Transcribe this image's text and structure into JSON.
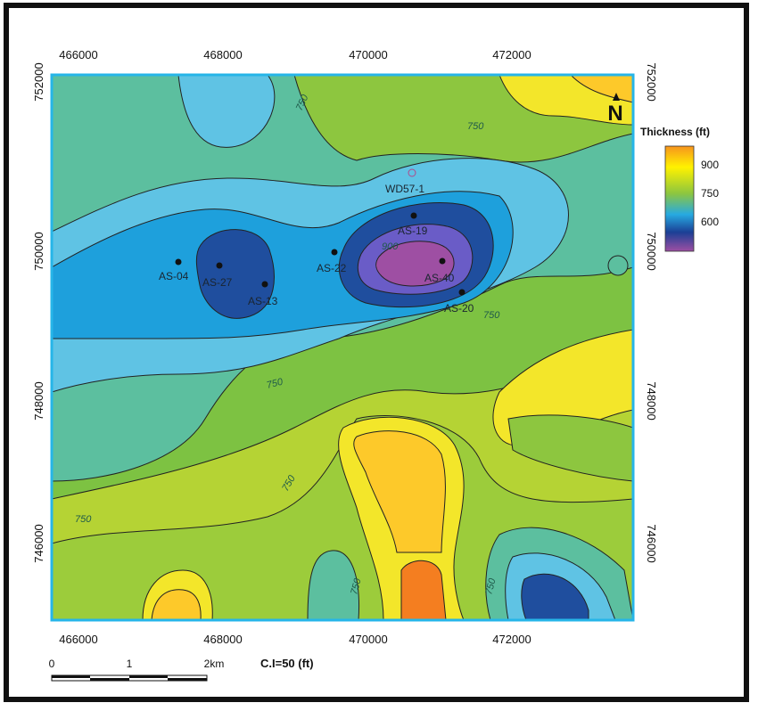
{
  "map": {
    "x_ticks": [
      "466000",
      "468000",
      "470000",
      "472000"
    ],
    "y_ticks": [
      "752000",
      "750000",
      "748000",
      "746000"
    ],
    "contour_labels": [
      "750",
      "750",
      "750",
      "750",
      "750",
      "750",
      "750",
      "750",
      "900"
    ],
    "north_arrow": "N",
    "contour_interval": "C.I=50 (ft)"
  },
  "wells": [
    {
      "name": "AS-04"
    },
    {
      "name": "AS-27"
    },
    {
      "name": "AS-13"
    },
    {
      "name": "AS-22"
    },
    {
      "name": "WD57-1"
    },
    {
      "name": "AS-19"
    },
    {
      "name": "AS-40"
    },
    {
      "name": "AS-20"
    }
  ],
  "legend": {
    "title": "Thickness (ft)",
    "values": [
      "900",
      "750",
      "600"
    ],
    "colors": [
      "#f7941d",
      "#fff200",
      "#8dc63f",
      "#27aae1",
      "#1b3f95",
      "#9e4fa3"
    ]
  },
  "scale_bar": {
    "labels": [
      "0",
      "1",
      "2km"
    ]
  },
  "colors": {
    "deep_purple": "#9e4fa3",
    "deep_blue": "#1f4e9e",
    "mid_blue": "#1ea0dc",
    "light_blue": "#5fc3e4",
    "teal": "#5cbf9f",
    "green": "#7dc242",
    "yellow_green": "#c8d92f",
    "yellow": "#f3e62a",
    "gold": "#fdc92a",
    "orange": "#f47e20"
  }
}
